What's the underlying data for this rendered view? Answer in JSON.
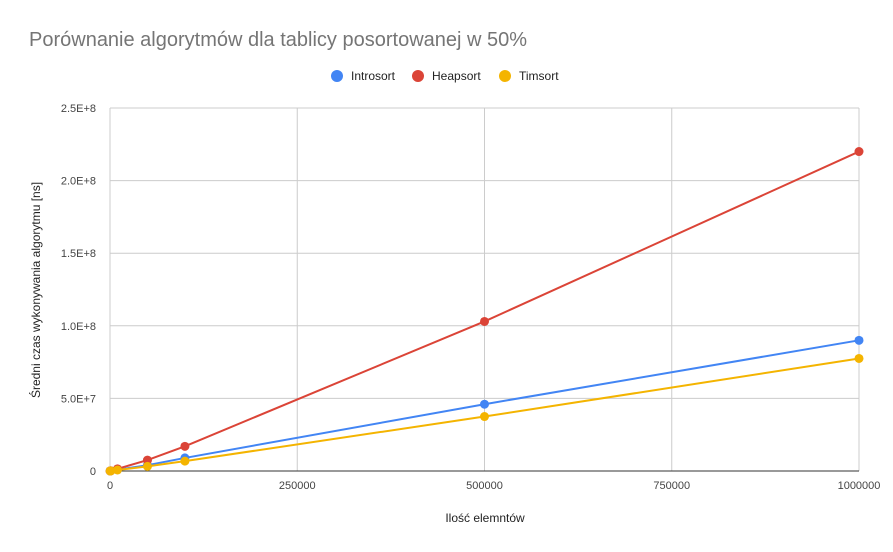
{
  "chart_data": {
    "type": "line",
    "title": "Porównanie algorytmów dla tablicy posortowanej w 50%",
    "xlabel": "Ilość elemntów",
    "ylabel": "Średni czas wykonywania algorytmu [ns]",
    "x": [
      100,
      1000,
      10000,
      50000,
      100000,
      500000,
      1000000
    ],
    "xlim": [
      0,
      1000000
    ],
    "ylim": [
      0,
      250000000
    ],
    "xticks": [
      0,
      250000,
      500000,
      750000,
      1000000
    ],
    "xtick_labels": [
      "0",
      "250000",
      "500000",
      "750000",
      "1000000"
    ],
    "yticks": [
      0,
      50000000,
      100000000,
      150000000,
      200000000,
      250000000
    ],
    "ytick_labels": [
      "0",
      "5.0E+7",
      "1.0E+8",
      "1.5E+8",
      "2.0E+8",
      "2.5E+8"
    ],
    "grid": true,
    "legend_position": "top-center",
    "series": [
      {
        "name": "Introsort",
        "color": "#4285F4",
        "values": [
          8000,
          90000,
          900000,
          4000000,
          9000000,
          46000000,
          90000000
        ]
      },
      {
        "name": "Heapsort",
        "color": "#DB4437",
        "values": [
          10000,
          140000,
          1500000,
          7500000,
          17000000,
          103000000,
          220000000
        ]
      },
      {
        "name": "Timsort",
        "color": "#F4B400",
        "values": [
          5000,
          60000,
          700000,
          3200000,
          6800000,
          37500000,
          77500000
        ]
      }
    ]
  }
}
